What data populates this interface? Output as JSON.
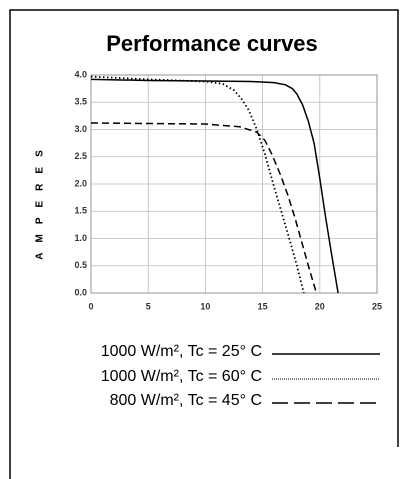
{
  "chart_data": {
    "type": "line",
    "title": "Performance curves",
    "y_label": "AMPERES",
    "xlim": [
      0,
      25
    ],
    "xticks": [
      0,
      5,
      10,
      15,
      20,
      25
    ],
    "ylim": [
      0,
      4
    ],
    "yticks": [
      {
        "value": 0,
        "label": "0.0"
      },
      0.5,
      {
        "value": 1,
        "label": "1.0"
      },
      1.5,
      {
        "value": 2,
        "label": "2.0"
      },
      2.5,
      {
        "value": 3,
        "label": "3.0"
      },
      3.5,
      {
        "value": 4,
        "label": "4.0"
      }
    ],
    "grid": true,
    "series": [
      {
        "name": "1000 W/m², Tc = 25° C",
        "color": "#000000",
        "style": "solid",
        "x": [
          0,
          5,
          10,
          14,
          16,
          17,
          17.6,
          18,
          18.5,
          19,
          19.5,
          20,
          20.5,
          21,
          21.6
        ],
        "values": [
          3.92,
          3.9,
          3.89,
          3.88,
          3.86,
          3.82,
          3.75,
          3.65,
          3.45,
          3.15,
          2.75,
          2.1,
          1.4,
          0.75,
          0
        ]
      },
      {
        "name": "1000 W/m², Tc = 60° C",
        "color": "#000000",
        "style": "dotted",
        "x": [
          0,
          5,
          10,
          11.5,
          12.5,
          13.2,
          13.8,
          14.5,
          15.2,
          16,
          16.7,
          17.4,
          18,
          18.6
        ],
        "values": [
          3.97,
          3.92,
          3.88,
          3.84,
          3.72,
          3.55,
          3.35,
          3.0,
          2.55,
          1.95,
          1.45,
          0.95,
          0.5,
          0
        ]
      },
      {
        "name": "800 W/m², Tc = 45° C",
        "color": "#000000",
        "style": "dashed",
        "x": [
          0,
          5,
          10,
          13,
          14.5,
          15.2,
          15.8,
          16.5,
          17.2,
          17.8,
          18.4,
          19,
          19.7
        ],
        "values": [
          3.12,
          3.11,
          3.1,
          3.05,
          2.95,
          2.8,
          2.55,
          2.2,
          1.8,
          1.4,
          0.95,
          0.5,
          0
        ]
      }
    ]
  }
}
